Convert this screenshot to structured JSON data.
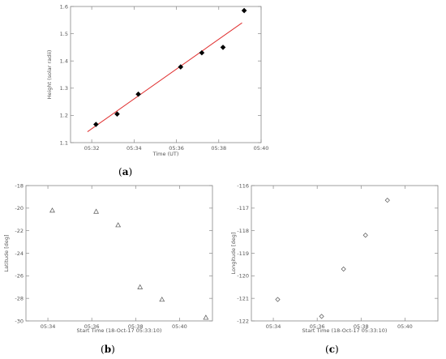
{
  "chart_data": [
    {
      "panel": "(a)",
      "panel_letter": "a",
      "type": "scatter",
      "xlabel": "Time (UT)",
      "ylabel": "Height (solar radii)",
      "x_ticks": [
        "05:32",
        "05:34",
        "05:36",
        "05:38",
        "05:40"
      ],
      "x_tick_values": [
        32,
        34,
        36,
        38,
        40
      ],
      "xlim": [
        31,
        40
      ],
      "y_ticks": [
        "1.1",
        "1.2",
        "1.3",
        "1.4",
        "1.5",
        "1.6"
      ],
      "y_tick_values": [
        1.1,
        1.2,
        1.3,
        1.4,
        1.5,
        1.6
      ],
      "ylim": [
        1.1,
        1.6
      ],
      "marker": "filled-diamond",
      "marker_color": "#000000",
      "points": [
        {
          "x": 32.2,
          "y": 1.167
        },
        {
          "x": 33.2,
          "y": 1.205
        },
        {
          "x": 34.2,
          "y": 1.278
        },
        {
          "x": 36.2,
          "y": 1.378
        },
        {
          "x": 37.2,
          "y": 1.43
        },
        {
          "x": 38.2,
          "y": 1.45
        },
        {
          "x": 39.2,
          "y": 1.585
        }
      ],
      "fit_line": {
        "color": "#e03030",
        "x": [
          31.8,
          39.1
        ],
        "y": [
          1.14,
          1.54
        ]
      }
    },
    {
      "panel": "(b)",
      "panel_letter": "b",
      "type": "scatter",
      "xlabel": "Start Time (18-Oct-17 05:33:10)",
      "ylabel": "Latitude [deg]",
      "x_ticks": [
        "05:34",
        "05:36",
        "05:38",
        "05:40"
      ],
      "x_tick_values": [
        34,
        36,
        38,
        40
      ],
      "xlim": [
        33,
        41.5
      ],
      "y_ticks": [
        "-18",
        "-20",
        "-22",
        "-24",
        "-26",
        "-28",
        "-30"
      ],
      "y_tick_values": [
        -18,
        -20,
        -22,
        -24,
        -26,
        -28,
        -30
      ],
      "ylim": [
        -30,
        -18
      ],
      "marker": "open-triangle",
      "marker_color": "#555555",
      "points": [
        {
          "x": 34.2,
          "y": -20.2
        },
        {
          "x": 36.2,
          "y": -20.3
        },
        {
          "x": 37.2,
          "y": -21.5
        },
        {
          "x": 38.2,
          "y": -27.0
        },
        {
          "x": 39.2,
          "y": -28.1
        },
        {
          "x": 41.2,
          "y": -29.7
        }
      ]
    },
    {
      "panel": "(c)",
      "panel_letter": "c",
      "type": "scatter",
      "xlabel": "Start Time (18-Oct-17 05:33:10)",
      "ylabel": "Longitude [deg]",
      "x_ticks": [
        "05:34",
        "05:36",
        "05:38",
        "05:40"
      ],
      "x_tick_values": [
        34,
        36,
        38,
        40
      ],
      "xlim": [
        33,
        41.5
      ],
      "y_ticks": [
        "-116",
        "-117",
        "-118",
        "-119",
        "-120",
        "-121",
        "-122"
      ],
      "y_tick_values": [
        -116,
        -117,
        -118,
        -119,
        -120,
        -121,
        -122
      ],
      "ylim": [
        -122,
        -116
      ],
      "marker": "open-diamond",
      "marker_color": "#555555",
      "points": [
        {
          "x": 34.2,
          "y": -121.05
        },
        {
          "x": 36.2,
          "y": -121.8
        },
        {
          "x": 37.2,
          "y": -119.7
        },
        {
          "x": 38.2,
          "y": -118.2
        },
        {
          "x": 39.2,
          "y": -116.65
        }
      ]
    }
  ]
}
